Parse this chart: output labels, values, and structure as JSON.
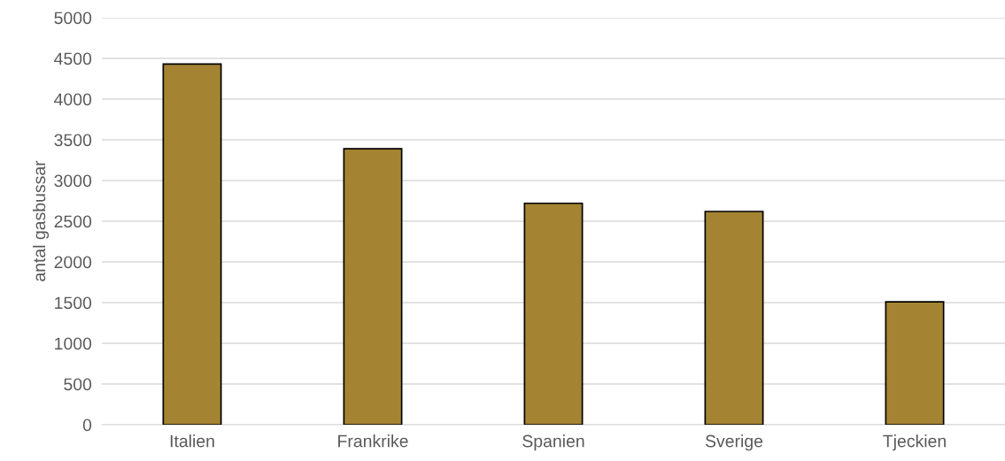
{
  "chart_data": {
    "type": "bar",
    "ylabel": "antal gasbussar",
    "categories": [
      "Italien",
      "Frankrike",
      "Spanien",
      "Sverige",
      "Tjeckien"
    ],
    "values": [
      4430,
      3390,
      2720,
      2620,
      1510
    ],
    "color": "#a48432",
    "ylim": [
      0,
      5000
    ],
    "yticks": [
      0,
      500,
      1000,
      1500,
      2000,
      2500,
      3000,
      3500,
      4000,
      4500,
      5000
    ],
    "grid": "y"
  }
}
